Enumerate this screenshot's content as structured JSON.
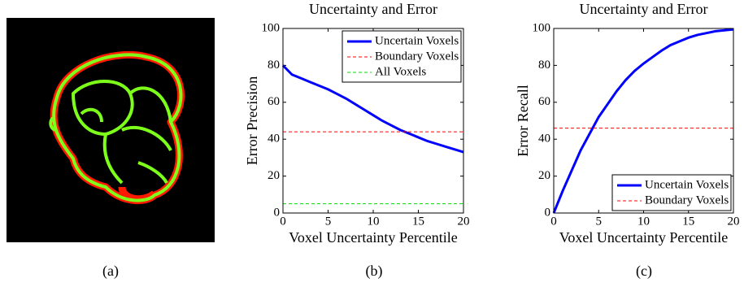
{
  "panel_labels": [
    "(a)",
    "(b)",
    "(c)"
  ],
  "chart_data": [
    {
      "type": "line",
      "title": "Uncertainty and Error",
      "xlabel": "Voxel Uncertainty Percentile",
      "ylabel": "Error Precision",
      "x": [
        0,
        1,
        2,
        3,
        4,
        5,
        6,
        7,
        8,
        9,
        10,
        11,
        12,
        13,
        14,
        15,
        16,
        17,
        18,
        19,
        20
      ],
      "xlim": [
        0,
        20
      ],
      "xticks": [
        0,
        5,
        10,
        15,
        20
      ],
      "ylim": [
        0,
        100
      ],
      "yticks": [
        0,
        20,
        40,
        60,
        80,
        100
      ],
      "legend": "upper right",
      "grid": false,
      "series": [
        {
          "name": "Uncertain Voxels",
          "color": "#0000ff",
          "dashed": false,
          "values": [
            80,
            75,
            73,
            71,
            69,
            67,
            64.5,
            62,
            59,
            56,
            53,
            50,
            47.5,
            45,
            43,
            41,
            39,
            37.5,
            36,
            34.5,
            33
          ]
        },
        {
          "name": "Boundary Voxels",
          "color": "#ff0000",
          "dashed": true,
          "values": [
            44,
            44,
            44,
            44,
            44,
            44,
            44,
            44,
            44,
            44,
            44,
            44,
            44,
            44,
            44,
            44,
            44,
            44,
            44,
            44,
            44
          ]
        },
        {
          "name": "All Voxels",
          "color": "#00dd00",
          "dashed": true,
          "values": [
            5,
            5,
            5,
            5,
            5,
            5,
            5,
            5,
            5,
            5,
            5,
            5,
            5,
            5,
            5,
            5,
            5,
            5,
            5,
            5,
            5
          ]
        }
      ]
    },
    {
      "type": "line",
      "title": "Uncertainty and Error",
      "xlabel": "Voxel Uncertainty Percentile",
      "ylabel": "Error Recall",
      "x": [
        0,
        1,
        2,
        3,
        4,
        5,
        6,
        7,
        8,
        9,
        10,
        11,
        12,
        13,
        14,
        15,
        16,
        17,
        18,
        19,
        20
      ],
      "xlim": [
        0,
        20
      ],
      "xticks": [
        0,
        5,
        10,
        15,
        20
      ],
      "ylim": [
        0,
        100
      ],
      "yticks": [
        0,
        20,
        40,
        60,
        80,
        100
      ],
      "legend": "lower right",
      "grid": false,
      "series": [
        {
          "name": "Uncertain Voxels",
          "color": "#0000ff",
          "dashed": false,
          "values": [
            0,
            12,
            23,
            34,
            43,
            52,
            59,
            66,
            72,
            77,
            81,
            84.5,
            88,
            91,
            93,
            95,
            96.5,
            97.5,
            98.5,
            99,
            99.5
          ]
        },
        {
          "name": "Boundary Voxels",
          "color": "#ff0000",
          "dashed": true,
          "values": [
            46,
            46,
            46,
            46,
            46,
            46,
            46,
            46,
            46,
            46,
            46,
            46,
            46,
            46,
            46,
            46,
            46,
            46,
            46,
            46,
            46
          ]
        }
      ]
    }
  ]
}
